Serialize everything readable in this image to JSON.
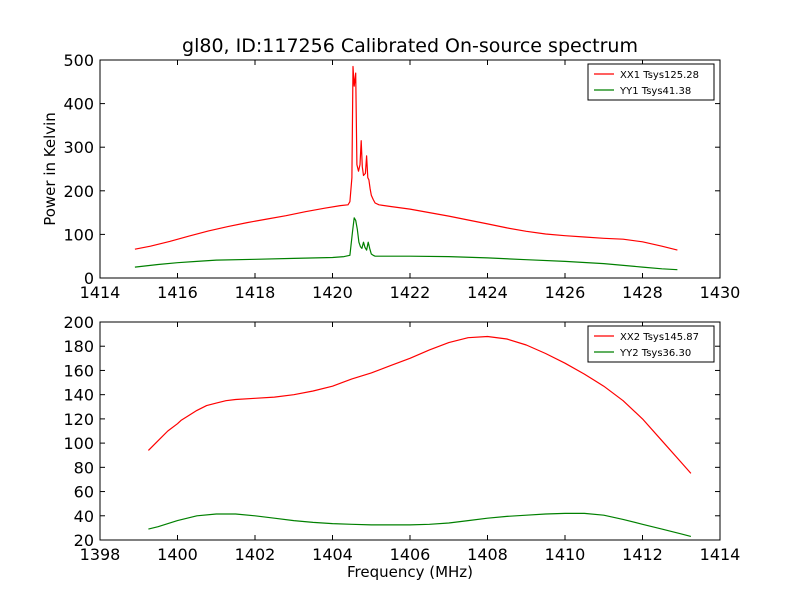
{
  "chart_data": [
    {
      "type": "line",
      "title": "gl80, ID:117256 Calibrated On-source spectrum",
      "xlabel": "",
      "ylabel": "Power in Kelvin",
      "xlim": [
        1414,
        1430
      ],
      "ylim": [
        0,
        500
      ],
      "xticks": [
        1414,
        1416,
        1418,
        1420,
        1422,
        1424,
        1426,
        1428,
        1430
      ],
      "yticks": [
        0,
        100,
        200,
        300,
        400,
        500
      ],
      "legend_position": "top-right",
      "grid": false,
      "series": [
        {
          "name": "XX1 Tsys125.28",
          "color": "#ff0000",
          "x": [
            1414.9,
            1415.3,
            1415.8,
            1416.3,
            1416.8,
            1417.3,
            1417.8,
            1418.3,
            1418.8,
            1419.3,
            1419.8,
            1420.2,
            1420.4,
            1420.45,
            1420.5,
            1420.53,
            1420.56,
            1420.6,
            1420.63,
            1420.67,
            1420.71,
            1420.74,
            1420.77,
            1420.8,
            1420.85,
            1420.88,
            1420.91,
            1420.94,
            1420.97,
            1421.0,
            1421.05,
            1421.1,
            1421.2,
            1421.5,
            1422.0,
            1422.5,
            1423.0,
            1423.5,
            1424.0,
            1424.5,
            1425.0,
            1425.5,
            1426.0,
            1426.5,
            1427.0,
            1427.5,
            1428.0,
            1428.5,
            1428.9
          ],
          "y": [
            66,
            73,
            84,
            96,
            108,
            118,
            127,
            135,
            143,
            152,
            160,
            166,
            168,
            175,
            230,
            485,
            440,
            470,
            260,
            245,
            260,
            315,
            255,
            235,
            240,
            280,
            230,
            225,
            205,
            190,
            180,
            172,
            168,
            164,
            158,
            150,
            142,
            133,
            124,
            115,
            107,
            101,
            97,
            94,
            91,
            89,
            83,
            73,
            64
          ]
        },
        {
          "name": "YY1 Tsys41.38",
          "color": "#008000",
          "x": [
            1414.9,
            1415.5,
            1416.0,
            1416.5,
            1417.0,
            1418.0,
            1419.0,
            1420.0,
            1420.3,
            1420.45,
            1420.52,
            1420.56,
            1420.6,
            1420.64,
            1420.68,
            1420.72,
            1420.76,
            1420.8,
            1420.84,
            1420.88,
            1420.92,
            1420.96,
            1421.0,
            1421.05,
            1421.1,
            1421.3,
            1422.0,
            1423.0,
            1424.0,
            1425.0,
            1426.0,
            1427.0,
            1428.0,
            1428.5,
            1428.9
          ],
          "y": [
            25,
            31,
            35,
            38,
            41,
            43,
            45,
            47,
            49,
            52,
            108,
            138,
            132,
            112,
            82,
            72,
            68,
            82,
            70,
            64,
            82,
            68,
            55,
            52,
            50,
            50,
            50,
            49,
            46,
            42,
            38,
            33,
            25,
            21,
            19
          ]
        }
      ]
    },
    {
      "type": "line",
      "title": "",
      "xlabel": "Frequency (MHz)",
      "ylabel": "",
      "xlim": [
        1398,
        1414
      ],
      "ylim": [
        20,
        200
      ],
      "xticks": [
        1398,
        1400,
        1402,
        1404,
        1406,
        1408,
        1410,
        1412,
        1414
      ],
      "yticks": [
        20,
        40,
        60,
        80,
        100,
        120,
        140,
        160,
        180,
        200
      ],
      "legend_position": "top-right",
      "grid": false,
      "series": [
        {
          "name": "XX2 Tsys145.87",
          "color": "#ff0000",
          "x": [
            1399.25,
            1399.5,
            1399.75,
            1400.0,
            1400.1,
            1400.25,
            1400.5,
            1400.75,
            1401.0,
            1401.25,
            1401.5,
            1402.0,
            1402.5,
            1403.0,
            1403.5,
            1404.0,
            1404.5,
            1405.0,
            1405.5,
            1406.0,
            1406.5,
            1407.0,
            1407.5,
            1408.0,
            1408.5,
            1409.0,
            1409.5,
            1410.0,
            1410.5,
            1411.0,
            1411.5,
            1412.0,
            1412.5,
            1413.0,
            1413.25
          ],
          "y": [
            94,
            102,
            110,
            116,
            119,
            122,
            127,
            131,
            133,
            135,
            136,
            137,
            138,
            140,
            143,
            147,
            153,
            158,
            164,
            170,
            177,
            183,
            187,
            188,
            186,
            181,
            174,
            166,
            157,
            147,
            135,
            120,
            102,
            84,
            75
          ]
        },
        {
          "name": "YY2 Tsys36.30",
          "color": "#008000",
          "x": [
            1399.25,
            1399.5,
            1400.0,
            1400.5,
            1401.0,
            1401.5,
            1402.0,
            1402.5,
            1403.0,
            1403.5,
            1404.0,
            1404.5,
            1405.0,
            1405.5,
            1406.0,
            1406.5,
            1407.0,
            1407.5,
            1408.0,
            1408.5,
            1409.0,
            1409.5,
            1410.0,
            1410.5,
            1411.0,
            1411.5,
            1412.0,
            1412.5,
            1413.0,
            1413.25
          ],
          "y": [
            29,
            31,
            36,
            40,
            41.5,
            41.5,
            40,
            38,
            36,
            34.5,
            33.5,
            33,
            32.5,
            32.5,
            32.5,
            33,
            34,
            36,
            38,
            39.5,
            40.5,
            41.5,
            42,
            42,
            40.5,
            37,
            33,
            29,
            25,
            23
          ]
        }
      ]
    }
  ]
}
